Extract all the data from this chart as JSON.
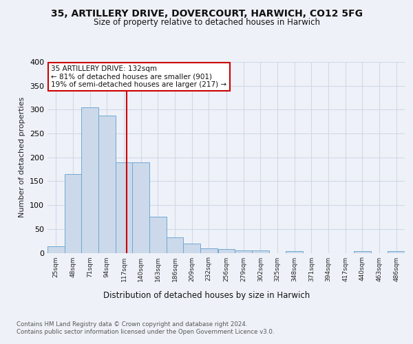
{
  "title1": "35, ARTILLERY DRIVE, DOVERCOURT, HARWICH, CO12 5FG",
  "title2": "Size of property relative to detached houses in Harwich",
  "xlabel": "Distribution of detached houses by size in Harwich",
  "ylabel": "Number of detached properties",
  "bar_edges": [
    25,
    48,
    71,
    94,
    117,
    140,
    163,
    186,
    209,
    232,
    256,
    279,
    302,
    325,
    348,
    371,
    394,
    417,
    440,
    463,
    486
  ],
  "bar_heights": [
    13,
    165,
    305,
    288,
    190,
    190,
    76,
    32,
    19,
    9,
    8,
    5,
    5,
    0,
    4,
    0,
    0,
    0,
    4,
    0,
    4
  ],
  "bar_color": "#ccd9ea",
  "bar_edgecolor": "#6fa8d4",
  "vline_x": 132,
  "vline_color": "#cc0000",
  "annotation_text": "35 ARTILLERY DRIVE: 132sqm\n← 81% of detached houses are smaller (901)\n19% of semi-detached houses are larger (217) →",
  "annotation_box_color": "#ffffff",
  "annotation_box_edgecolor": "#cc0000",
  "ylim": [
    0,
    400
  ],
  "yticks": [
    0,
    50,
    100,
    150,
    200,
    250,
    300,
    350,
    400
  ],
  "tick_labels": [
    "25sqm",
    "48sqm",
    "71sqm",
    "94sqm",
    "117sqm",
    "140sqm",
    "163sqm",
    "186sqm",
    "209sqm",
    "232sqm",
    "256sqm",
    "279sqm",
    "302sqm",
    "325sqm",
    "348sqm",
    "371sqm",
    "394sqm",
    "417sqm",
    "440sqm",
    "463sqm",
    "486sqm"
  ],
  "footnote": "Contains HM Land Registry data © Crown copyright and database right 2024.\nContains public sector information licensed under the Open Government Licence v3.0.",
  "bg_color": "#eef2f8",
  "grid_color": "#d0d8e8"
}
